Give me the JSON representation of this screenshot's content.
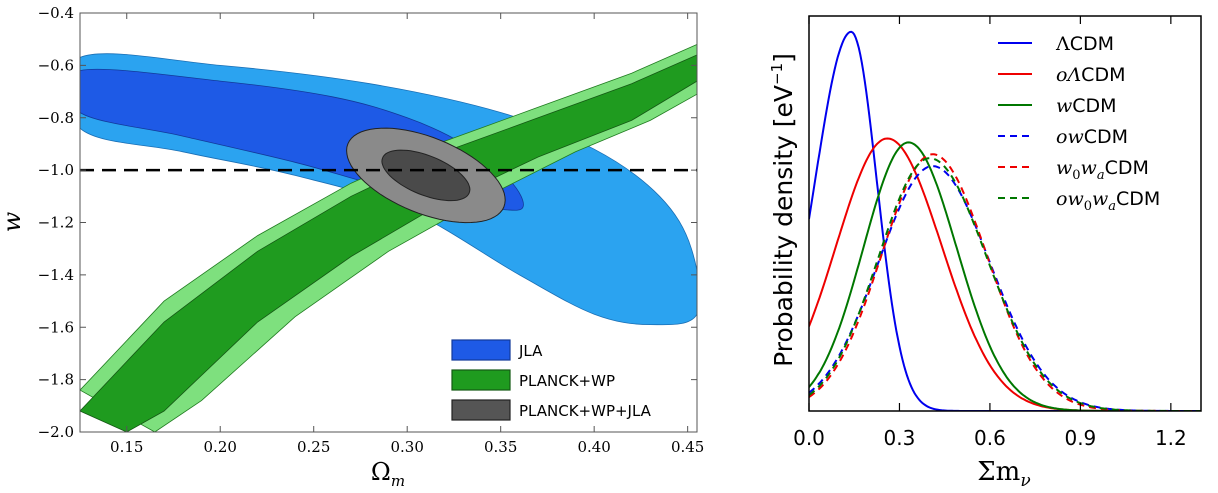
{
  "chart_data": [
    {
      "type": "contour",
      "xlabel": "Ω",
      "xlabel_sub": "m",
      "ylabel": "w",
      "xlim": [
        0.125,
        0.455
      ],
      "ylim": [
        -2.0,
        -0.4
      ],
      "xticks": [
        "0.15",
        "0.20",
        "0.25",
        "0.30",
        "0.35",
        "0.40",
        "0.45"
      ],
      "xtick_values": [
        0.15,
        0.2,
        0.25,
        0.3,
        0.35,
        0.4,
        0.45
      ],
      "yticks": [
        "−0.4",
        "−0.6",
        "−0.8",
        "−1.0",
        "−1.2",
        "−1.4",
        "−1.6",
        "−1.8",
        "−2.0"
      ],
      "ytick_values": [
        -0.4,
        -0.6,
        -0.8,
        -1.0,
        -1.2,
        -1.4,
        -1.6,
        -1.8,
        -2.0
      ],
      "reference_line": {
        "y": -1.0,
        "style": "dashed"
      },
      "legend": [
        {
          "label": "JLA",
          "color": "#1e5ae6"
        },
        {
          "label": "PLANCK+WP",
          "color": "#1f9b1f"
        },
        {
          "label": "PLANCK+WP+JLA",
          "color": "#555555"
        }
      ],
      "legend_position": "bottom-right",
      "contours": {
        "JLA": {
          "inner_color": "#1e5ae6",
          "outer_color": "#2ba3f0",
          "inner_98": [
            [
              0.125,
              -0.62
            ],
            [
              0.2,
              -0.66
            ],
            [
              0.26,
              -0.72
            ],
            [
              0.3,
              -0.8
            ],
            [
              0.33,
              -0.9
            ],
            [
              0.355,
              -1.04
            ],
            [
              0.362,
              -1.14
            ],
            [
              0.35,
              -1.15
            ],
            [
              0.32,
              -1.12
            ],
            [
              0.28,
              -1.05
            ],
            [
              0.24,
              -0.97
            ],
            [
              0.18,
              -0.87
            ],
            [
              0.125,
              -0.78
            ]
          ],
          "outer_95": [
            [
              0.125,
              -0.57
            ],
            [
              0.2,
              -0.6
            ],
            [
              0.28,
              -0.67
            ],
            [
              0.35,
              -0.78
            ],
            [
              0.4,
              -0.92
            ],
            [
              0.435,
              -1.1
            ],
            [
              0.452,
              -1.3
            ],
            [
              0.455,
              -1.55
            ],
            [
              0.43,
              -1.59
            ],
            [
              0.4,
              -1.55
            ],
            [
              0.36,
              -1.4
            ],
            [
              0.3,
              -1.15
            ],
            [
              0.24,
              -1.02
            ],
            [
              0.18,
              -0.93
            ],
            [
              0.125,
              -0.84
            ]
          ]
        },
        "PLANCK+WP": {
          "inner_color": "#1f9b1f",
          "outer_color": "#7ee07e",
          "band_upper_outer": [
            [
              0.125,
              -1.84
            ],
            [
              0.17,
              -1.5
            ],
            [
              0.22,
              -1.25
            ],
            [
              0.27,
              -1.05
            ],
            [
              0.32,
              -0.89
            ],
            [
              0.37,
              -0.76
            ],
            [
              0.42,
              -0.63
            ],
            [
              0.455,
              -0.52
            ]
          ],
          "band_upper_inner": [
            [
              0.125,
              -1.92
            ],
            [
              0.17,
              -1.58
            ],
            [
              0.22,
              -1.31
            ],
            [
              0.27,
              -1.1
            ],
            [
              0.32,
              -0.93
            ],
            [
              0.37,
              -0.8
            ],
            [
              0.42,
              -0.67
            ],
            [
              0.455,
              -0.56
            ]
          ],
          "band_lower_inner": [
            [
              0.15,
              -2.0
            ],
            [
              0.17,
              -1.92
            ],
            [
              0.22,
              -1.58
            ],
            [
              0.27,
              -1.33
            ],
            [
              0.32,
              -1.12
            ],
            [
              0.37,
              -0.95
            ],
            [
              0.42,
              -0.81
            ],
            [
              0.455,
              -0.66
            ]
          ],
          "band_lower_outer": [
            [
              0.165,
              -2.0
            ],
            [
              0.19,
              -1.88
            ],
            [
              0.24,
              -1.56
            ],
            [
              0.29,
              -1.31
            ],
            [
              0.34,
              -1.11
            ],
            [
              0.39,
              -0.93
            ],
            [
              0.43,
              -0.81
            ],
            [
              0.455,
              -0.71
            ]
          ]
        },
        "PLANCK+WP+JLA": {
          "inner_color": "#4a4a4a",
          "outer_color": "#8a8a8a",
          "center": [
            0.31,
            -1.02
          ],
          "inner_radii": [
            0.025,
            0.075
          ],
          "outer_radii": [
            0.045,
            0.145
          ],
          "angle_deg": -22
        }
      }
    },
    {
      "type": "line",
      "xlabel": "Σm",
      "xlabel_sub": "ν",
      "ylabel": "Probability density [eV",
      "ylabel_sup": "−1",
      "ylabel_close": "]",
      "xlim": [
        0.0,
        1.3
      ],
      "xticks": [
        "0.0",
        "0.3",
        "0.6",
        "0.9",
        "1.2"
      ],
      "xtick_values": [
        0.0,
        0.3,
        0.6,
        0.9,
        1.2
      ],
      "ylim": [
        0,
        1.0
      ],
      "legend_position": "top-right",
      "series": [
        {
          "name": "ΛCDM",
          "prefix": "Λ",
          "prefix_italic": false,
          "suffix": "CDM",
          "color": "#0000ee",
          "dash": false,
          "mu": 0.14,
          "sigma_left": 0.12,
          "sigma_right": 0.085,
          "amp": 0.96,
          "floor": 0.0
        },
        {
          "name": "oΛCDM",
          "prefix": "oΛ",
          "prefix_italic": true,
          "suffix": "CDM",
          "color": "#ee0000",
          "dash": false,
          "mu": 0.26,
          "sigma_left": 0.17,
          "sigma_right": 0.18,
          "amp": 0.69,
          "floor": 0.0
        },
        {
          "name": "wCDM",
          "prefix": "w",
          "prefix_italic": true,
          "suffix": "CDM",
          "color": "#007700",
          "dash": false,
          "mu": 0.33,
          "sigma_left": 0.15,
          "sigma_right": 0.16,
          "amp": 0.68,
          "floor": 0.0
        },
        {
          "name": "owCDM",
          "prefix": "ow",
          "prefix_italic": true,
          "suffix": "CDM",
          "color": "#0000ee",
          "dash": true,
          "mu": 0.41,
          "sigma_left": 0.18,
          "sigma_right": 0.19,
          "amp": 0.62,
          "floor": 0.0
        },
        {
          "name": "w0waCDM",
          "prefix": "w",
          "prefix_italic": true,
          "sub1": "0",
          "mid": "w",
          "sub2": "a",
          "suffix": "CDM",
          "color": "#ee0000",
          "dash": true,
          "mu": 0.41,
          "sigma_left": 0.17,
          "sigma_right": 0.18,
          "amp": 0.65,
          "floor": 0.0
        },
        {
          "name": "ow0waCDM",
          "prefix": "ow",
          "prefix_italic": true,
          "sub1": "0",
          "mid": "w",
          "sub2": "a",
          "suffix": "CDM",
          "color": "#007700",
          "dash": true,
          "mu": 0.4,
          "sigma_left": 0.17,
          "sigma_right": 0.19,
          "amp": 0.64,
          "floor": 0.0
        }
      ]
    }
  ]
}
